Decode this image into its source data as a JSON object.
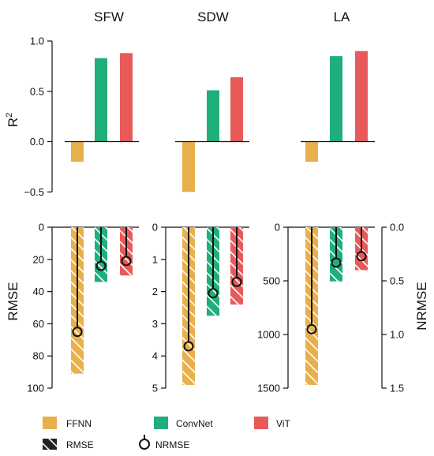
{
  "colors": {
    "FFNN": "#E8B04B",
    "ConvNet": "#1FAF7A",
    "ViT": "#E85A5A",
    "axis": "#111111"
  },
  "chart_data": [
    {
      "id": "r2",
      "type": "bar",
      "ylabel_parts": [
        "R",
        "2"
      ],
      "ylim": [
        -0.6,
        1.0
      ],
      "yticks": [
        -0.5,
        0.0,
        0.5,
        1.0
      ],
      "ytick_labels": [
        "−0.5",
        "0.0",
        "0.5",
        "1.0"
      ],
      "panels": [
        {
          "title": "SFW",
          "values": [
            -0.2,
            0.83,
            0.88
          ]
        },
        {
          "title": "SDW",
          "values": [
            -0.5,
            0.51,
            0.64
          ]
        },
        {
          "title": "LA",
          "values": [
            -0.2,
            0.85,
            0.9
          ]
        }
      ]
    },
    {
      "id": "error",
      "type": "bar",
      "ylabel": "RMSE",
      "ylabel_right": "NRMSE",
      "panels": [
        {
          "ylim": [
            0,
            100
          ],
          "yticks": [
            0,
            20,
            40,
            60,
            80,
            100
          ],
          "ytick_labels": [
            "0",
            "20",
            "40",
            "60",
            "80",
            "100"
          ],
          "rmse": [
            91,
            34,
            30
          ],
          "nrmse_scaled": [
            65,
            24,
            21
          ]
        },
        {
          "ylim": [
            0,
            5
          ],
          "yticks": [
            0,
            1,
            2,
            3,
            4,
            5
          ],
          "ytick_labels": [
            "0",
            "1",
            "2",
            "3",
            "4",
            "5"
          ],
          "rmse": [
            4.9,
            2.75,
            2.4
          ],
          "nrmse_scaled": [
            3.7,
            2.05,
            1.7
          ]
        },
        {
          "ylim": [
            0,
            1500
          ],
          "yticks": [
            0,
            500,
            1000,
            1500
          ],
          "ytick_labels": [
            "0",
            "500",
            "1000",
            "1500"
          ],
          "rmse": [
            1470,
            505,
            400
          ],
          "nrmse_scaled": [
            950,
            330,
            270
          ]
        }
      ],
      "right_axis": {
        "ylim": [
          0,
          1.5
        ],
        "yticks": [
          0.0,
          0.5,
          1.0,
          1.5
        ],
        "ytick_labels": [
          "0.0",
          "0.5",
          "1.0",
          "1.5"
        ]
      }
    }
  ],
  "legend": {
    "models": [
      "FFNN",
      "ConvNet",
      "ViT"
    ],
    "metrics": [
      "RMSE",
      "NRMSE"
    ]
  }
}
